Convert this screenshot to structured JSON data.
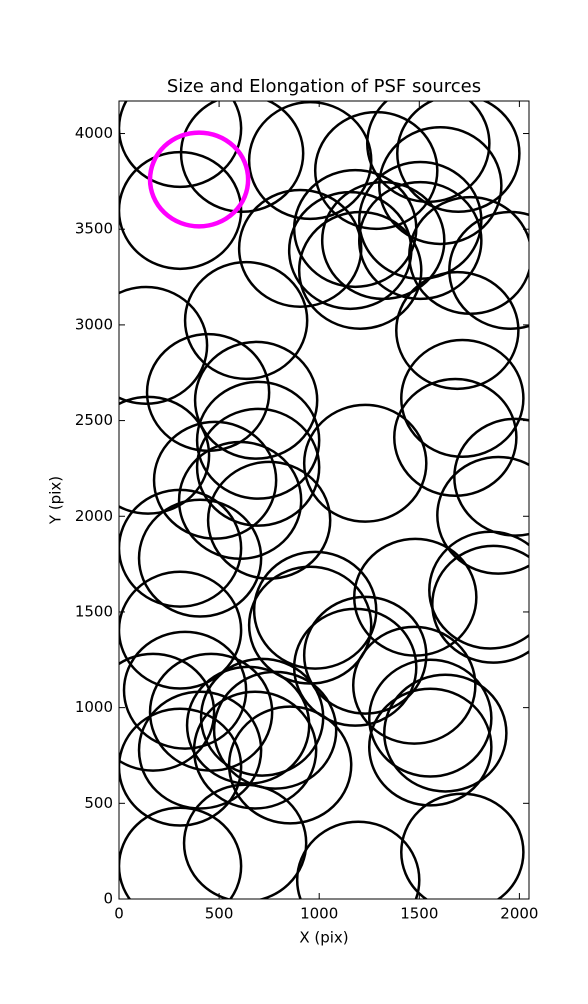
{
  "chart_data": {
    "type": "scatter",
    "title": "Size and Elongation of PSF sources",
    "x_label": "X (pix)",
    "y_label": "Y (pix)",
    "xlim": [
      0,
      2048
    ],
    "ylim": [
      0,
      4170
    ],
    "xticks": [
      0,
      500,
      1000,
      1500,
      2000
    ],
    "yticks": [
      0,
      500,
      1000,
      1500,
      2000,
      2500,
      3000,
      3500,
      4000
    ],
    "series": [
      {
        "color": "#000000",
        "x": [
          305,
          615,
          305,
          955,
          1285,
          1545,
          1695,
          1605,
          905,
          1180,
          1155,
          1320,
          1505,
          1505,
          1755,
          1205,
          1955,
          135,
          635,
          1690,
          445,
          685,
          1715,
          145,
          695,
          1230,
          1680,
          1980,
          480,
          695,
          605,
          750,
          305,
          405,
          1895,
          1855,
          1870,
          1480,
          305,
          980,
          955,
          1180,
          1230,
          1475,
          170,
          330,
          460,
          645,
          715,
          780,
          855,
          680,
          405,
          305,
          1555,
          1630,
          1555,
          630,
          305,
          1195,
          1715
        ],
        "y": [
          4026,
          3896,
          3598,
          3859,
          3807,
          3948,
          3896,
          3728,
          3400,
          3504,
          3389,
          3441,
          3546,
          3441,
          3363,
          3285,
          3285,
          2893,
          3023,
          2971,
          2647,
          2606,
          2616,
          2319,
          2397,
          2277,
          2412,
          2204,
          2188,
          2256,
          2083,
          1979,
          1833,
          1781,
          2005,
          1614,
          1540,
          1577,
          1405,
          1509,
          1431,
          1211,
          1274,
          1117,
          976,
          1091,
          976,
          908,
          950,
          882,
          700,
          778,
          778,
          689,
          945,
          867,
          794,
          292,
          172,
          99,
          245
        ],
        "sizes": [
          305,
          305,
          305,
          305,
          305,
          305,
          305,
          305,
          305,
          305,
          305,
          305,
          305,
          305,
          305,
          305,
          305,
          305,
          305,
          305,
          305,
          305,
          305,
          305,
          305,
          305,
          305,
          305,
          305,
          305,
          305,
          305,
          305,
          305,
          305,
          305,
          305,
          305,
          305,
          305,
          305,
          305,
          305,
          305,
          305,
          305,
          305,
          305,
          305,
          305,
          305,
          305,
          305,
          305,
          305,
          305,
          305,
          305,
          305,
          305,
          305
        ]
      },
      {
        "color": "#ff00ff",
        "x": [
          400
        ],
        "y": [
          3760
        ],
        "sizes": [
          245
        ]
      }
    ]
  }
}
